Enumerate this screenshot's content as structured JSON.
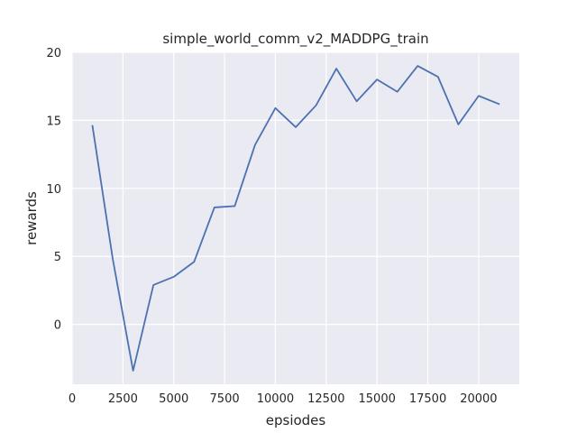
{
  "chart_data": {
    "type": "line",
    "title": "simple_world_comm_v2_MADDPG_train",
    "xlabel": "epsiodes",
    "ylabel": "rewards",
    "xlim": [
      0,
      22000
    ],
    "ylim": [
      -4.4,
      20.0
    ],
    "xticks": [
      0,
      2500,
      5000,
      7500,
      10000,
      12500,
      15000,
      17500,
      20000
    ],
    "yticks": [
      0,
      5,
      10,
      15,
      20
    ],
    "xtick_labels": [
      "0",
      "2500",
      "5000",
      "7500",
      "10000",
      "12500",
      "15000",
      "17500",
      "20000"
    ],
    "ytick_labels": [
      "0",
      "5",
      "10",
      "15",
      "20"
    ],
    "grid": true,
    "background": "#eaeaf2",
    "line_color": "#4c72b0",
    "x": [
      1000,
      2000,
      3000,
      4000,
      5000,
      6000,
      7000,
      8000,
      9000,
      10000,
      11000,
      12000,
      13000,
      14000,
      15000,
      16000,
      17000,
      18000,
      19000,
      20000,
      21000
    ],
    "series": [
      {
        "values": [
          14.6,
          4.8,
          -3.4,
          2.9,
          3.5,
          4.6,
          8.6,
          8.7,
          13.2,
          15.9,
          14.5,
          16.1,
          18.8,
          16.4,
          18.0,
          17.1,
          19.0,
          18.2,
          14.7,
          16.8,
          16.2
        ]
      }
    ]
  }
}
